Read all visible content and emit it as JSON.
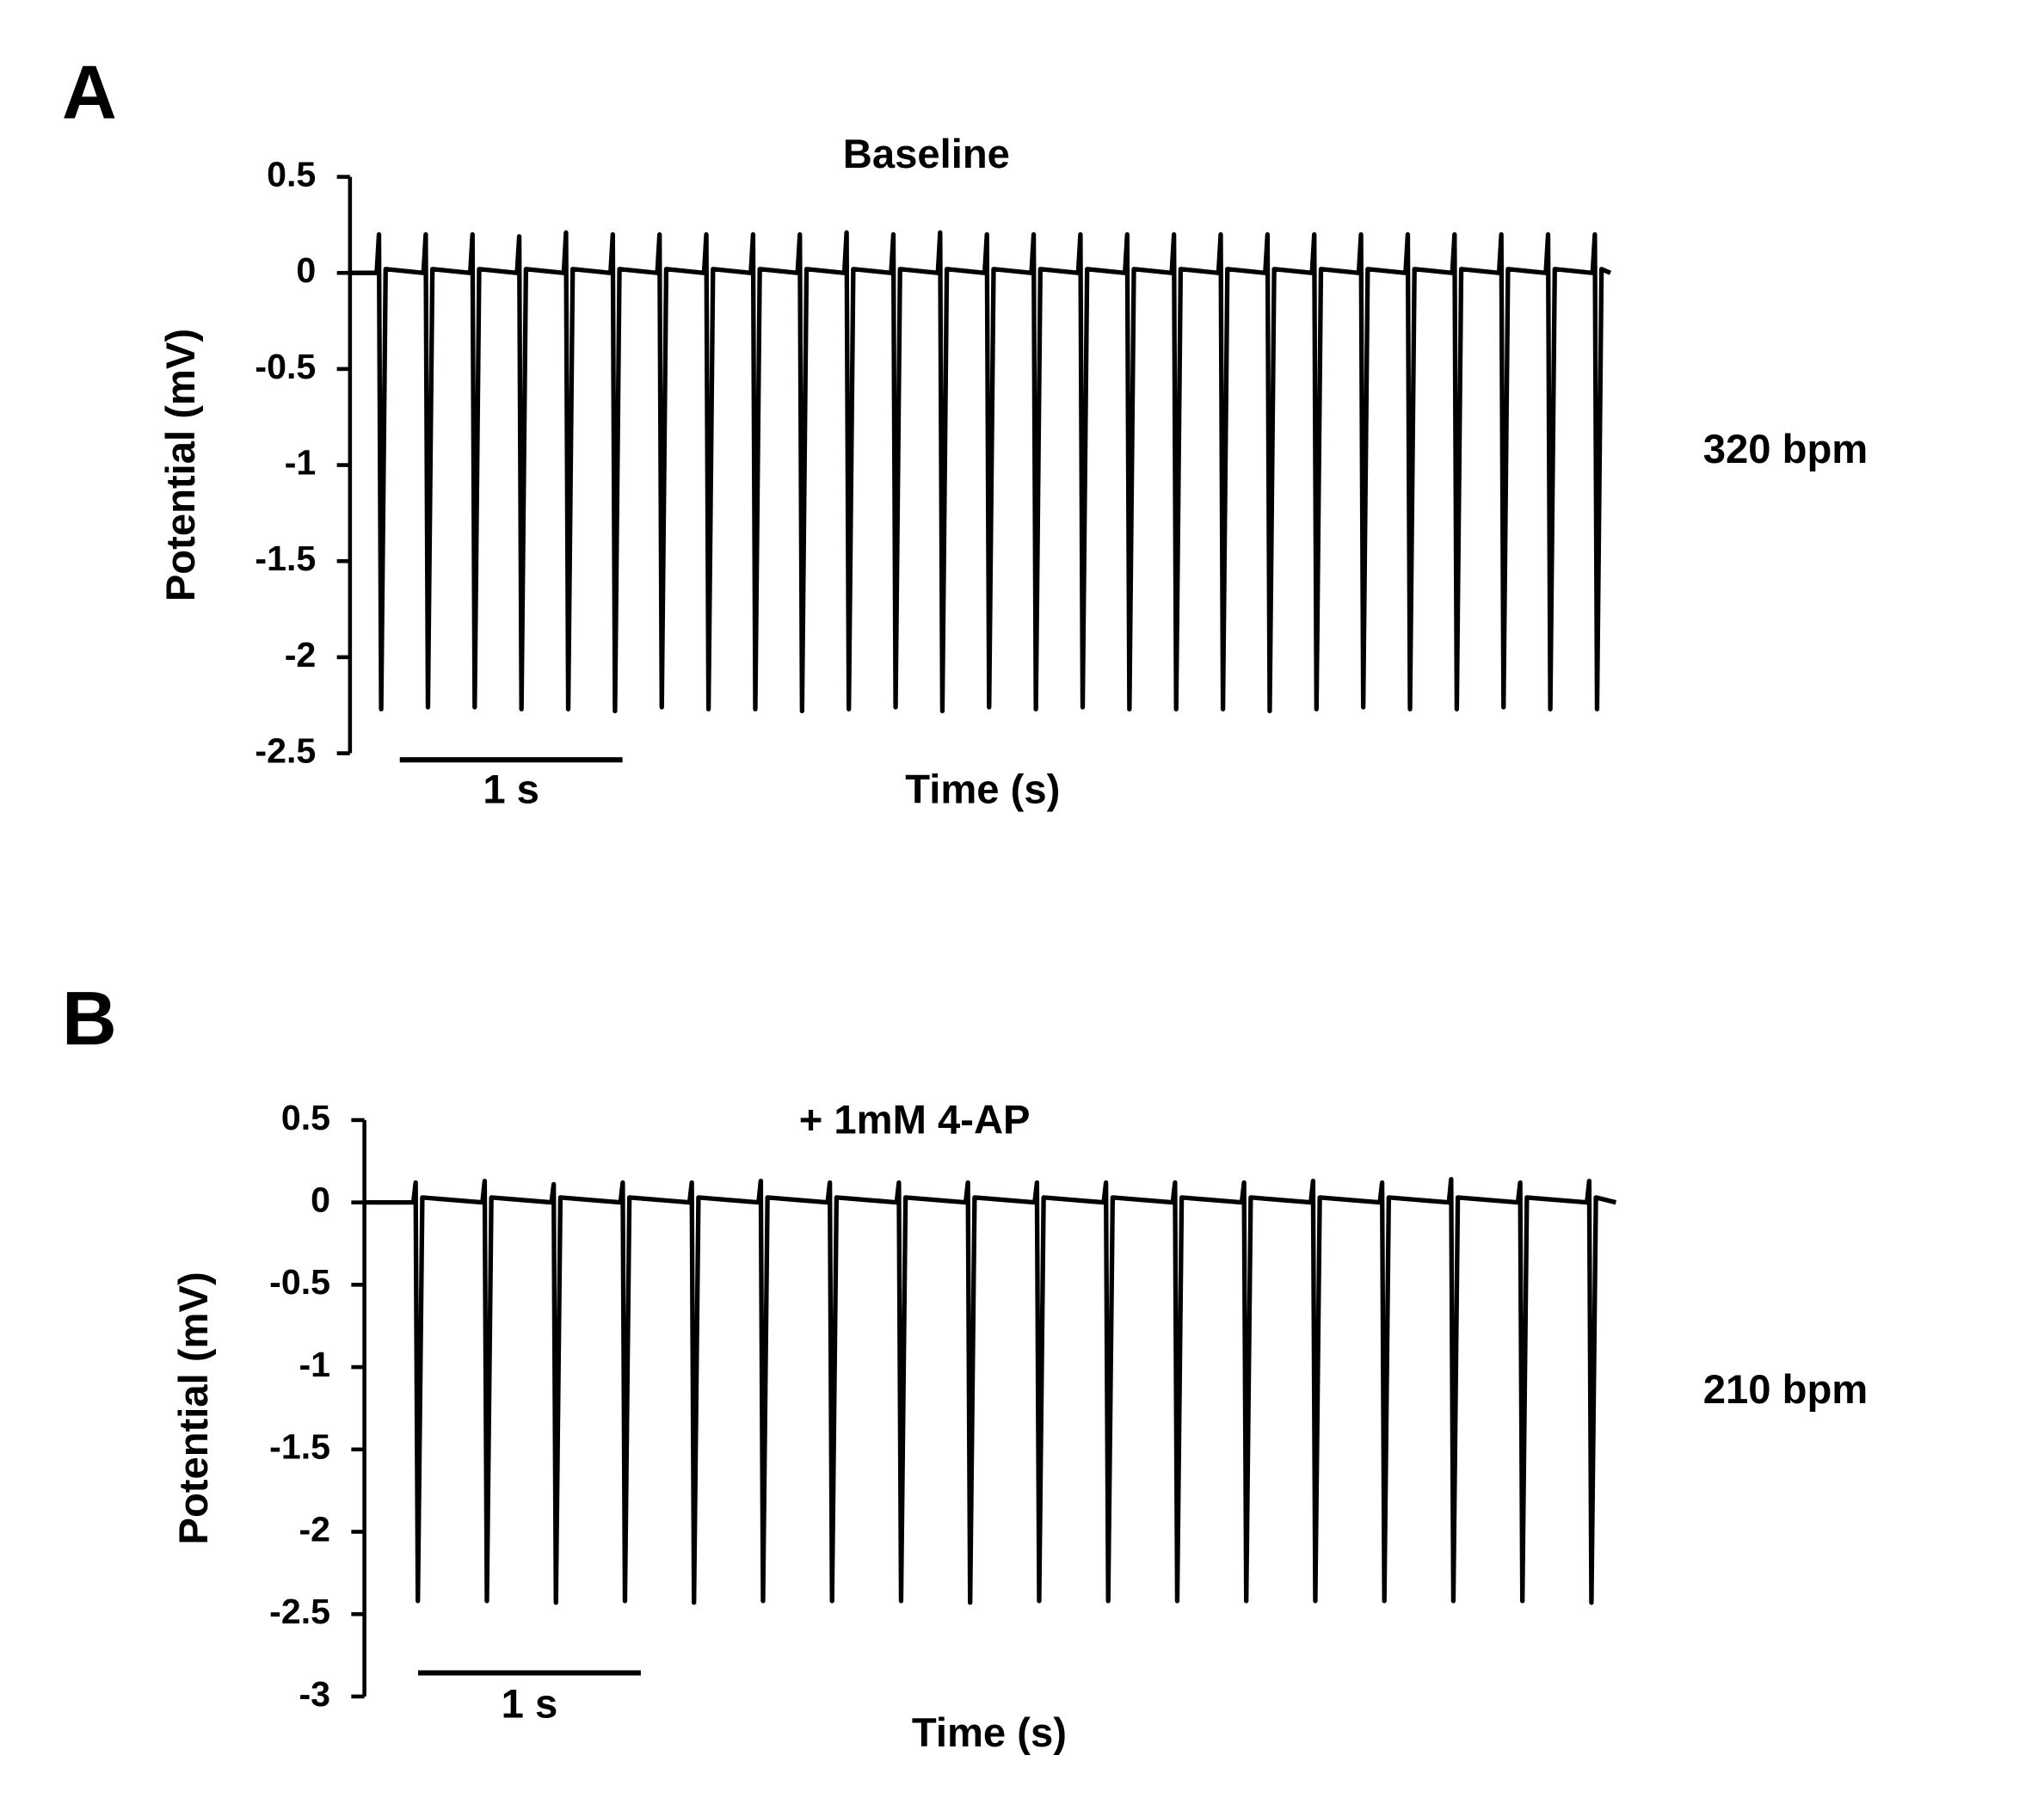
{
  "chart_data": [
    {
      "type": "line",
      "panel_label": "A",
      "title": "Baseline",
      "xlabel": "Time (s)",
      "ylabel": "Potential (mV)",
      "annotation": "320 bpm",
      "scale_bar": {
        "value": 1,
        "label": "1 s"
      },
      "xlim": [
        0,
        5.66
      ],
      "ylim": [
        -2.5,
        0.5
      ],
      "yticks": [
        0.5,
        0,
        -0.5,
        -1,
        -1.5,
        -2,
        -2.5
      ],
      "x": [
        0,
        0.12,
        0.13,
        0.14,
        0.16,
        0.33,
        0.34,
        0.35,
        0.37,
        0.54,
        0.55,
        0.56,
        0.58,
        0.75,
        0.76,
        0.77,
        0.79,
        0.96,
        0.97,
        0.98,
        1.0,
        1.17,
        1.18,
        1.19,
        1.21,
        1.38,
        1.39,
        1.4,
        1.42,
        1.59,
        1.6,
        1.61,
        1.63,
        1.8,
        1.81,
        1.82,
        1.84,
        2.01,
        2.02,
        2.03,
        2.05,
        2.22,
        2.23,
        2.24,
        2.26,
        2.43,
        2.44,
        2.45,
        2.47,
        2.64,
        2.65,
        2.66,
        2.68,
        2.85,
        2.86,
        2.87,
        2.89,
        3.06,
        3.07,
        3.08,
        3.1,
        3.27,
        3.28,
        3.29,
        3.31,
        3.48,
        3.49,
        3.5,
        3.52,
        3.69,
        3.7,
        3.71,
        3.73,
        3.9,
        3.91,
        3.92,
        3.94,
        4.11,
        4.12,
        4.13,
        4.15,
        4.32,
        4.33,
        4.34,
        4.36,
        4.53,
        4.54,
        4.55,
        4.57,
        4.74,
        4.75,
        4.76,
        4.78,
        4.95,
        4.96,
        4.97,
        4.99,
        5.16,
        5.17,
        5.18,
        5.2,
        5.37,
        5.38,
        5.39,
        5.41,
        5.58,
        5.59,
        5.6,
        5.62,
        5.66
      ],
      "series": [
        {
          "color": "#000000",
          "values": [
            0,
            0,
            0.2,
            -2.27,
            0.02,
            0,
            0.2,
            -2.26,
            0.02,
            0,
            0.2,
            -2.26,
            0.02,
            0,
            0.19,
            -2.27,
            0.02,
            0,
            0.21,
            -2.27,
            0.02,
            0,
            0.2,
            -2.28,
            0.02,
            0,
            0.2,
            -2.26,
            0.02,
            0,
            0.2,
            -2.27,
            0.02,
            0,
            0.2,
            -2.27,
            0.02,
            0,
            0.2,
            -2.28,
            0.02,
            0,
            0.21,
            -2.27,
            0.02,
            0,
            0.2,
            -2.26,
            0.02,
            0,
            0.21,
            -2.28,
            0.02,
            0,
            0.2,
            -2.26,
            0.02,
            0,
            0.2,
            -2.27,
            0.02,
            0,
            0.2,
            -2.26,
            0.02,
            0,
            0.2,
            -2.27,
            0.02,
            0,
            0.2,
            -2.27,
            0.02,
            0,
            0.2,
            -2.27,
            0.02,
            0,
            0.2,
            -2.28,
            0.02,
            0,
            0.2,
            -2.27,
            0.02,
            0,
            0.2,
            -2.26,
            0.02,
            0,
            0.2,
            -2.27,
            0.02,
            0,
            0.2,
            -2.27,
            0.02,
            0,
            0.2,
            -2.26,
            0.02,
            0,
            0.2,
            -2.27,
            0.02,
            0,
            0.2,
            -2.27,
            0.02,
            0
          ]
        }
      ]
    },
    {
      "type": "line",
      "panel_label": "B",
      "title": "+ 1mM 4-AP",
      "xlabel": "Time (s)",
      "ylabel": "Potential (mV)",
      "annotation": "210 bpm",
      "scale_bar": {
        "value": 1,
        "label": "1 s"
      },
      "xlim": [
        0,
        5.62
      ],
      "ylim": [
        -3,
        0.5
      ],
      "yticks": [
        0.5,
        0,
        -0.5,
        -1,
        -1.5,
        -2,
        -2.5,
        -3
      ],
      "x": [
        0,
        0.22,
        0.23,
        0.24,
        0.26,
        0.53,
        0.54,
        0.55,
        0.57,
        0.84,
        0.85,
        0.86,
        0.88,
        1.15,
        1.16,
        1.17,
        1.19,
        1.46,
        1.47,
        1.48,
        1.5,
        1.77,
        1.78,
        1.79,
        1.81,
        2.08,
        2.09,
        2.1,
        2.12,
        2.39,
        2.4,
        2.41,
        2.43,
        2.7,
        2.71,
        2.72,
        2.74,
        3.01,
        3.02,
        3.03,
        3.05,
        3.32,
        3.33,
        3.34,
        3.36,
        3.63,
        3.64,
        3.65,
        3.67,
        3.94,
        3.95,
        3.96,
        3.98,
        4.25,
        4.26,
        4.27,
        4.29,
        4.56,
        4.57,
        4.58,
        4.6,
        4.87,
        4.88,
        4.89,
        4.91,
        5.18,
        5.19,
        5.2,
        5.22,
        5.49,
        5.5,
        5.51,
        5.53,
        5.62
      ],
      "series": [
        {
          "color": "#000000",
          "values": [
            0,
            0,
            0.12,
            -2.42,
            0.03,
            0,
            0.13,
            -2.42,
            0.03,
            0,
            0.11,
            -2.43,
            0.03,
            0,
            0.12,
            -2.42,
            0.03,
            0,
            0.12,
            -2.43,
            0.03,
            0,
            0.13,
            -2.42,
            0.03,
            0,
            0.12,
            -2.42,
            0.03,
            0,
            0.12,
            -2.42,
            0.03,
            0,
            0.12,
            -2.43,
            0.03,
            0,
            0.12,
            -2.42,
            0.03,
            0,
            0.12,
            -2.42,
            0.03,
            0,
            0.12,
            -2.42,
            0.03,
            0,
            0.12,
            -2.42,
            0.03,
            0,
            0.13,
            -2.42,
            0.03,
            0,
            0.12,
            -2.42,
            0.03,
            0,
            0.14,
            -2.42,
            0.03,
            0,
            0.12,
            -2.42,
            0.03,
            0,
            0.13,
            -2.43,
            0.03,
            0
          ]
        }
      ]
    }
  ]
}
